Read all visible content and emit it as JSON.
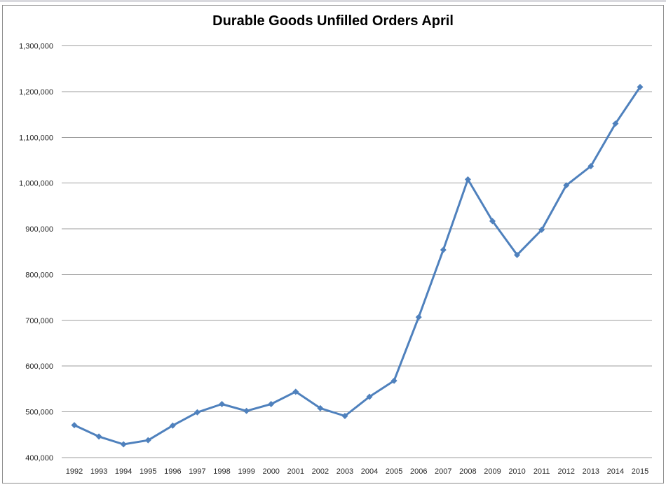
{
  "window": {
    "top_strip_color": "#D9D9DE"
  },
  "chart": {
    "border_color": "#8C8C8C",
    "background_color": "#FFFFFF"
  },
  "chart_data": {
    "type": "line",
    "title": "Durable Goods Unfilled Orders April",
    "categories": [
      "1992",
      "1993",
      "1994",
      "1995",
      "1996",
      "1997",
      "1998",
      "1999",
      "2000",
      "2001",
      "2002",
      "2003",
      "2004",
      "2005",
      "2006",
      "2007",
      "2008",
      "2009",
      "2010",
      "2011",
      "2012",
      "2013",
      "2014",
      "2015"
    ],
    "values": [
      471000,
      446000,
      429000,
      438000,
      470000,
      499000,
      517000,
      502000,
      517000,
      544000,
      508000,
      491000,
      533000,
      568000,
      707000,
      854000,
      1008000,
      917000,
      843000,
      898000,
      995000,
      1037000,
      1130000,
      1210000
    ],
    "xlabel": "",
    "ylabel": "",
    "ylim": [
      400000,
      1300000
    ],
    "ytick_step": 100000,
    "ytick_labels": [
      "400,000",
      "500,000",
      "600,000",
      "700,000",
      "800,000",
      "900,000",
      "1,000,000",
      "1,100,000",
      "1,200,000",
      "1,300,000"
    ],
    "grid": "horizontal",
    "legend": "none",
    "marker": "diamond",
    "line_color": "#4F81BD",
    "gridline_color": "#9E9E9E",
    "tick_label_color": "#262626",
    "title_color": "#000000"
  }
}
